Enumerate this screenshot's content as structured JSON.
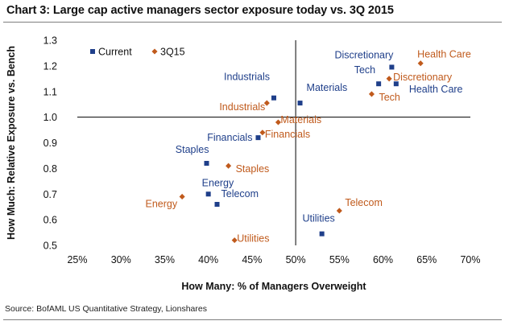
{
  "title": "Chart 3: Large cap active managers sector exposure today vs. 3Q 2015",
  "source": "Source: BofAML US Quantitative Strategy, Lionshares",
  "colors": {
    "current": "#1f3f8a",
    "q315": "#c05a1c",
    "axis": "#000000"
  },
  "chart_data": {
    "type": "scatter",
    "xlabel": "How Many: % of Managers Overweight",
    "ylabel": "How Much: Relative Exposure vs. Bench",
    "xlim": [
      0.25,
      0.7
    ],
    "ylim": [
      0.5,
      1.3
    ],
    "x_ticks": [
      0.25,
      0.3,
      0.35,
      0.4,
      0.45,
      0.5,
      0.55,
      0.6,
      0.65,
      0.7
    ],
    "x_tick_labels": [
      "25%",
      "30%",
      "35%",
      "40%",
      "45%",
      "50%",
      "55%",
      "60%",
      "65%",
      "70%"
    ],
    "y_ticks": [
      0.5,
      0.6,
      0.7,
      0.8,
      0.9,
      1.0,
      1.1,
      1.2,
      1.3
    ],
    "y_tick_labels": [
      "0.5",
      "0.6",
      "0.7",
      "0.8",
      "0.9",
      "1.0",
      "1.1",
      "1.2",
      "1.3"
    ],
    "axis_cross": {
      "x": 0.5,
      "y": 1.0
    },
    "legend_position": "top-left",
    "series": [
      {
        "name": "Current",
        "marker": "square",
        "points": [
          {
            "label": "Industrials",
            "x": 0.475,
            "y": 1.075
          },
          {
            "label": "Materials",
            "x": 0.505,
            "y": 1.055
          },
          {
            "label": "Tech",
            "x": 0.595,
            "y": 1.13
          },
          {
            "label": "Discretionary",
            "x": 0.61,
            "y": 1.195
          },
          {
            "label": "Health Care",
            "x": 0.615,
            "y": 1.13
          },
          {
            "label": "Financials",
            "x": 0.457,
            "y": 0.92
          },
          {
            "label": "Staples",
            "x": 0.398,
            "y": 0.82
          },
          {
            "label": "Energy",
            "x": 0.4,
            "y": 0.7
          },
          {
            "label": "Telecom",
            "x": 0.41,
            "y": 0.66
          },
          {
            "label": "Utilities",
            "x": 0.53,
            "y": 0.545
          }
        ]
      },
      {
        "name": "3Q15",
        "marker": "diamond",
        "points": [
          {
            "label": "Health Care",
            "x": 0.643,
            "y": 1.21
          },
          {
            "label": "Discretionary",
            "x": 0.607,
            "y": 1.15
          },
          {
            "label": "Tech",
            "x": 0.587,
            "y": 1.09
          },
          {
            "label": "Industrials",
            "x": 0.467,
            "y": 1.055
          },
          {
            "label": "Materials",
            "x": 0.48,
            "y": 0.98
          },
          {
            "label": "Financials",
            "x": 0.462,
            "y": 0.94
          },
          {
            "label": "Staples",
            "x": 0.423,
            "y": 0.81
          },
          {
            "label": "Energy",
            "x": 0.37,
            "y": 0.69
          },
          {
            "label": "Telecom",
            "x": 0.55,
            "y": 0.635
          },
          {
            "label": "Utilities",
            "x": 0.43,
            "y": 0.52
          }
        ]
      }
    ]
  }
}
